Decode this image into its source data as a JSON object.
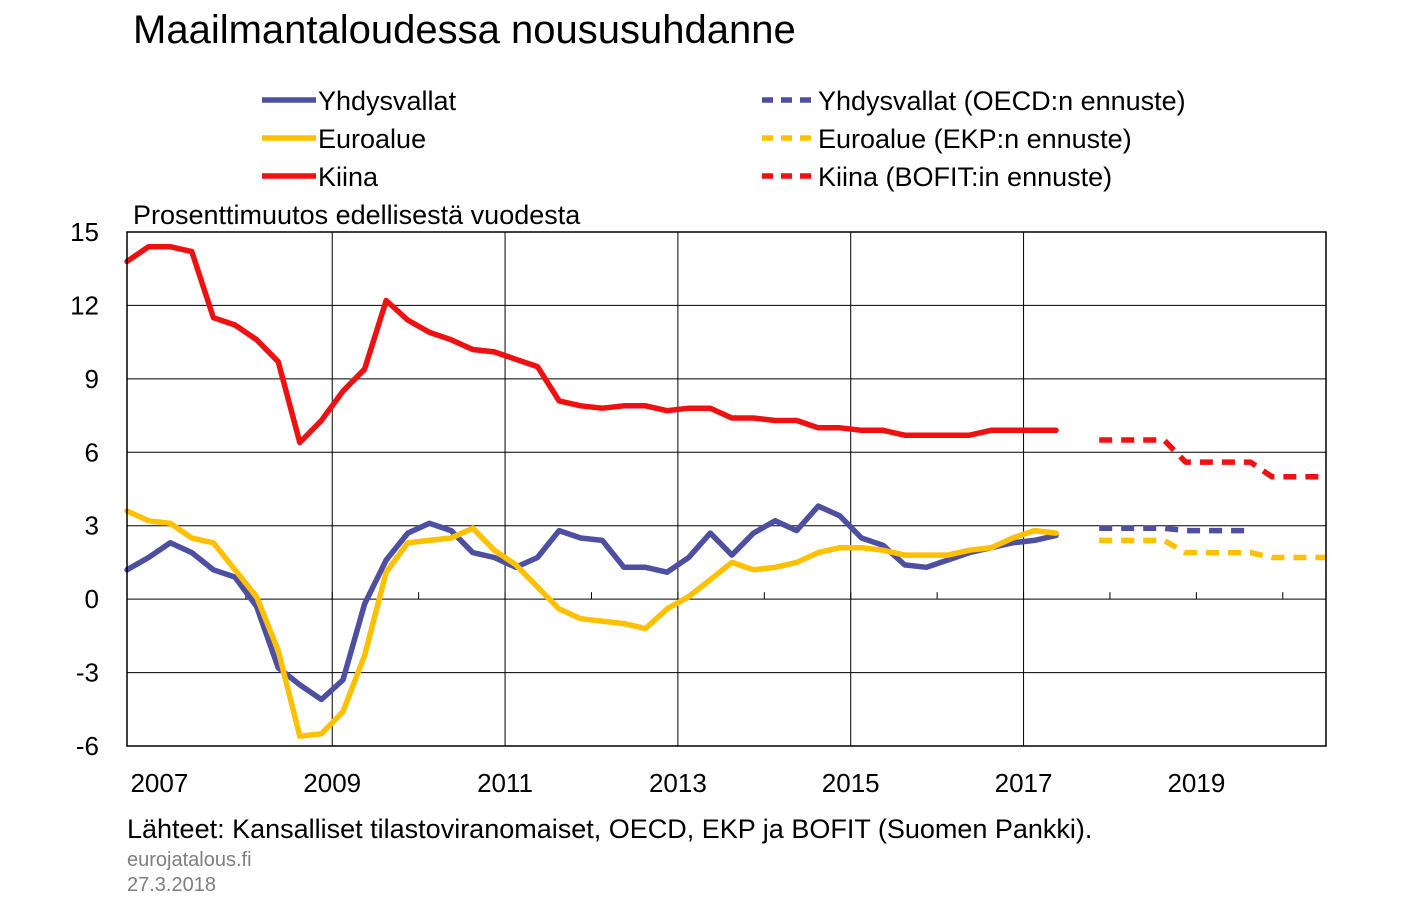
{
  "chart_data": {
    "type": "line",
    "title": "Maailmantaloudessa noususuhdanne",
    "ylabel": "Prosenttimuutos edellisestä vuodesta",
    "xlabel": "",
    "ylim": [
      -6,
      15
    ],
    "yticks": [
      "15",
      "12",
      "9",
      "6",
      "3",
      "0",
      "-3",
      "-6"
    ],
    "xlim": [
      2006.625,
      2020.5
    ],
    "xtick_labels": [
      "2007",
      "2009",
      "2011",
      "2013",
      "2015",
      "2017",
      "2019"
    ],
    "grid": "vertical and horizontal",
    "legend_position": "top",
    "legend": [
      {
        "label": "Yhdysvallat",
        "color": "#4e4fa0",
        "dash": false
      },
      {
        "label": "Yhdysvallat (OECD:n ennuste)",
        "color": "#4e4fa0",
        "dash": true
      },
      {
        "label": "Euroalue",
        "color": "#ffc000",
        "dash": false
      },
      {
        "label": "Euroalue (EKP:n ennuste)",
        "color": "#ffc000",
        "dash": true
      },
      {
        "label": "Kiina",
        "color": "#ee1111",
        "dash": false
      },
      {
        "label": "Kiina (BOFIT:in ennuste)",
        "color": "#ee1111",
        "dash": true
      }
    ],
    "series": [
      {
        "name": "Yhdysvallat",
        "color": "#4e4fa0",
        "dash": false,
        "x": [
          2006.625,
          2006.875,
          2007.125,
          2007.375,
          2007.625,
          2007.875,
          2008.125,
          2008.375,
          2008.625,
          2008.875,
          2009.125,
          2009.375,
          2009.625,
          2009.875,
          2010.125,
          2010.375,
          2010.625,
          2010.875,
          2011.125,
          2011.375,
          2011.625,
          2011.875,
          2012.125,
          2012.375,
          2012.625,
          2012.875,
          2013.125,
          2013.375,
          2013.625,
          2013.875,
          2014.125,
          2014.375,
          2014.625,
          2014.875,
          2015.125,
          2015.375,
          2015.625,
          2015.875,
          2016.125,
          2016.375,
          2016.625,
          2016.875,
          2017.125,
          2017.375,
          2017.625
        ],
        "y": [
          1.2,
          1.7,
          2.3,
          1.9,
          1.2,
          0.9,
          -0.3,
          -2.8,
          -3.5,
          -4.1,
          -3.3,
          -0.2,
          1.6,
          2.7,
          3.1,
          2.8,
          1.9,
          1.7,
          1.3,
          1.7,
          2.8,
          2.5,
          2.4,
          1.3,
          1.3,
          1.1,
          1.7,
          2.7,
          1.8,
          2.7,
          3.2,
          2.8,
          3.8,
          3.4,
          2.5,
          2.2,
          1.4,
          1.3,
          1.6,
          1.9,
          2.1,
          2.3,
          2.4,
          2.6,
          null
        ]
      },
      {
        "name": "Euroalue",
        "color": "#ffc000",
        "dash": false,
        "x": [
          2006.625,
          2006.875,
          2007.125,
          2007.375,
          2007.625,
          2007.875,
          2008.125,
          2008.375,
          2008.625,
          2008.875,
          2009.125,
          2009.375,
          2009.625,
          2009.875,
          2010.125,
          2010.375,
          2010.625,
          2010.875,
          2011.125,
          2011.375,
          2011.625,
          2011.875,
          2012.125,
          2012.375,
          2012.625,
          2012.875,
          2013.125,
          2013.375,
          2013.625,
          2013.875,
          2014.125,
          2014.375,
          2014.625,
          2014.875,
          2015.125,
          2015.375,
          2015.625,
          2015.875,
          2016.125,
          2016.375,
          2016.625,
          2016.875,
          2017.125,
          2017.375,
          2017.625
        ],
        "y": [
          3.6,
          3.2,
          3.1,
          2.5,
          2.3,
          1.2,
          0.1,
          -2.1,
          -5.6,
          -5.5,
          -4.6,
          -2.3,
          1.1,
          2.3,
          2.4,
          2.5,
          2.9,
          2.0,
          1.4,
          0.5,
          -0.4,
          -0.8,
          -0.9,
          -1.0,
          -1.2,
          -0.4,
          0.1,
          0.8,
          1.5,
          1.2,
          1.3,
          1.5,
          1.9,
          2.1,
          2.1,
          2.0,
          1.8,
          1.8,
          1.8,
          2.0,
          2.1,
          2.5,
          2.8,
          2.7,
          null
        ]
      },
      {
        "name": "Kiina",
        "color": "#ee1111",
        "dash": false,
        "x": [
          2006.625,
          2006.875,
          2007.125,
          2007.375,
          2007.625,
          2007.875,
          2008.125,
          2008.375,
          2008.625,
          2008.875,
          2009.125,
          2009.375,
          2009.625,
          2009.875,
          2010.125,
          2010.375,
          2010.625,
          2010.875,
          2011.125,
          2011.375,
          2011.625,
          2011.875,
          2012.125,
          2012.375,
          2012.625,
          2012.875,
          2013.125,
          2013.375,
          2013.625,
          2013.875,
          2014.125,
          2014.375,
          2014.625,
          2014.875,
          2015.125,
          2015.375,
          2015.625,
          2015.875,
          2016.125,
          2016.375,
          2016.625,
          2016.875,
          2017.125,
          2017.375,
          2017.625
        ],
        "y": [
          13.8,
          14.4,
          14.4,
          14.2,
          11.5,
          11.2,
          10.6,
          9.7,
          6.4,
          7.3,
          8.5,
          9.4,
          12.2,
          11.4,
          10.9,
          10.6,
          10.2,
          10.1,
          9.8,
          9.5,
          8.1,
          7.9,
          7.8,
          7.9,
          7.9,
          7.7,
          7.8,
          7.8,
          7.4,
          7.4,
          7.3,
          7.3,
          7.0,
          7.0,
          6.9,
          6.9,
          6.7,
          6.7,
          6.7,
          6.7,
          6.9,
          6.9,
          6.9,
          6.9,
          null
        ]
      },
      {
        "name": "Yhdysvallat (OECD:n ennuste)",
        "color": "#4e4fa0",
        "dash": true,
        "x": [
          2017.875,
          2018.125,
          2018.375,
          2018.625,
          2018.875,
          2019.125,
          2019.375,
          2019.625
        ],
        "y": [
          2.9,
          2.9,
          2.9,
          2.9,
          2.8,
          2.8,
          2.8,
          2.8
        ]
      },
      {
        "name": "Euroalue (EKP:n ennuste)",
        "color": "#ffc000",
        "dash": true,
        "x": [
          2017.875,
          2018.125,
          2018.375,
          2018.625,
          2018.875,
          2019.125,
          2019.375,
          2019.625,
          2019.875,
          2020.125,
          2020.375,
          2020.5
        ],
        "y": [
          2.4,
          2.4,
          2.4,
          2.4,
          1.9,
          1.9,
          1.9,
          1.9,
          1.7,
          1.7,
          1.7,
          1.7
        ]
      },
      {
        "name": "Kiina (BOFIT:in ennuste)",
        "color": "#ee1111",
        "dash": true,
        "x": [
          2017.875,
          2018.125,
          2018.375,
          2018.625,
          2018.875,
          2019.125,
          2019.375,
          2019.625,
          2019.875,
          2020.125,
          2020.375,
          2020.5
        ],
        "y": [
          6.5,
          6.5,
          6.5,
          6.5,
          5.6,
          5.6,
          5.6,
          5.6,
          5.0,
          5.0,
          5.0,
          5.0
        ]
      }
    ]
  },
  "footer": {
    "source": "Lähteet: Kansalliset tilastoviranomaiset,  OECD, EKP ja BOFIT (Suomen Pankki).",
    "site": "eurojatalous.fi",
    "date": "27.3.2018"
  }
}
